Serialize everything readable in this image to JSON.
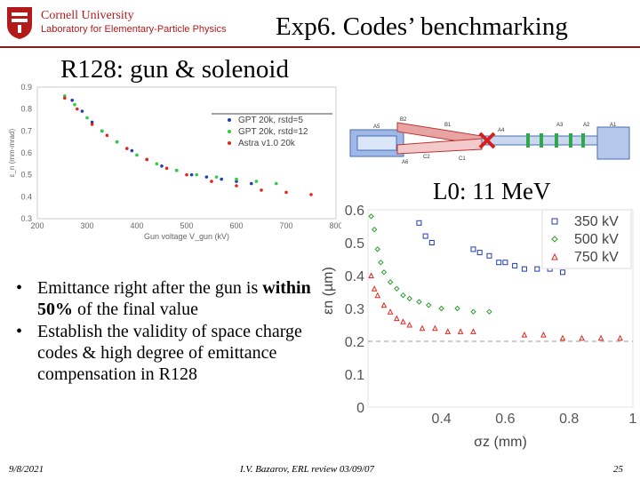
{
  "header": {
    "institution": "Cornell University",
    "lab": "Laboratory for Elementary-Particle Physics",
    "title": "Exp6. Codes’ benchmarking",
    "subtitle": "R128: gun & solenoid",
    "energy_label": "L0: 11 MeV"
  },
  "colors": {
    "brand": "#b31b1b",
    "rule": "#7f1d1d"
  },
  "bullets": [
    {
      "text_before": "Emittance right after the gun is ",
      "bold": "within 50%",
      "text_after": " of the final value"
    },
    {
      "text_before": "Establish the validity of space charge codes & high degree of emittance compensation in R128",
      "bold": "",
      "text_after": ""
    }
  ],
  "footer": {
    "date": "9/8/2021",
    "reference": "I.V. Bazarov, ERL review 03/09/07",
    "page": "25"
  },
  "beamline_labels": [
    "A1",
    "A2",
    "A3",
    "A4",
    "A5",
    "A6",
    "B1",
    "B2",
    "C1",
    "C2"
  ],
  "chart_data": [
    {
      "type": "scatter",
      "title": "",
      "xlabel": "Gun voltage V_gun (kV)",
      "ylabel": "ε_n (mm-mrad)",
      "xlim": [
        200,
        800
      ],
      "ylim": [
        0.3,
        0.9
      ],
      "x_ticks": [
        "200",
        "300",
        "400",
        "500",
        "600",
        "700",
        "800"
      ],
      "y_ticks": [
        "0.3",
        "0.4",
        "0.5",
        "0.6",
        "0.7",
        "0.8",
        "0.9"
      ],
      "legend_position": "top-right",
      "series": [
        {
          "name": "GPT 20k, rstd=5",
          "color": "#1f3fae",
          "marker": "dot",
          "x": [
            270,
            290,
            310,
            330,
            360,
            390,
            420,
            450,
            480,
            510,
            540,
            570,
            600,
            630
          ],
          "y": [
            0.84,
            0.79,
            0.74,
            0.7,
            0.65,
            0.61,
            0.57,
            0.54,
            0.52,
            0.5,
            0.49,
            0.48,
            0.47,
            0.46
          ]
        },
        {
          "name": "GPT 20k, rstd=12",
          "color": "#2ecc40",
          "marker": "dot",
          "x": [
            255,
            275,
            300,
            330,
            360,
            400,
            440,
            480,
            520,
            560,
            600,
            640,
            680
          ],
          "y": [
            0.86,
            0.82,
            0.76,
            0.7,
            0.65,
            0.59,
            0.55,
            0.52,
            0.5,
            0.49,
            0.48,
            0.47,
            0.46
          ]
        },
        {
          "name": "Astra v1.0 20k",
          "color": "#e3271d",
          "marker": "dot",
          "x": [
            255,
            280,
            310,
            340,
            380,
            420,
            460,
            500,
            550,
            600,
            650,
            700,
            750
          ],
          "y": [
            0.85,
            0.8,
            0.73,
            0.68,
            0.62,
            0.57,
            0.53,
            0.5,
            0.47,
            0.45,
            0.43,
            0.42,
            0.41
          ]
        }
      ]
    },
    {
      "type": "scatter",
      "title": "",
      "xlabel": "σz (mm)",
      "ylabel": "εn (µm)",
      "xlim": [
        0.17,
        1.0
      ],
      "ylim": [
        0,
        0.6
      ],
      "x_ticks": [
        {
          "v": 0.4,
          "label": "0.4"
        },
        {
          "v": 0.6,
          "label": "0.6"
        },
        {
          "v": 0.8,
          "label": "0.8"
        },
        {
          "v": 1.0,
          "label": "1"
        }
      ],
      "y_ticks": [
        "0",
        "0.1",
        "0.2",
        "0.3",
        "0.4",
        "0.5",
        "0.6"
      ],
      "legend_position": "top-right",
      "reference_line": 0.2,
      "series": [
        {
          "name": "350 kV",
          "color": "#1f3fae",
          "marker": "square",
          "x": [
            0.33,
            0.35,
            0.37,
            0.5,
            0.52,
            0.55,
            0.58,
            0.6,
            0.63,
            0.66,
            0.7,
            0.74,
            0.78
          ],
          "y": [
            0.56,
            0.52,
            0.5,
            0.48,
            0.47,
            0.46,
            0.44,
            0.44,
            0.43,
            0.42,
            0.42,
            0.42,
            0.41
          ]
        },
        {
          "name": "500 kV",
          "color": "#2a9d2a",
          "marker": "diamond",
          "x": [
            0.18,
            0.19,
            0.2,
            0.21,
            0.22,
            0.24,
            0.26,
            0.28,
            0.3,
            0.33,
            0.36,
            0.4,
            0.45,
            0.5,
            0.55
          ],
          "y": [
            0.58,
            0.54,
            0.48,
            0.44,
            0.41,
            0.38,
            0.36,
            0.34,
            0.33,
            0.32,
            0.31,
            0.3,
            0.3,
            0.29,
            0.29
          ]
        },
        {
          "name": "750 kV",
          "color": "#e3271d",
          "marker": "triangle",
          "x": [
            0.18,
            0.19,
            0.2,
            0.22,
            0.24,
            0.26,
            0.28,
            0.3,
            0.34,
            0.38,
            0.42,
            0.46,
            0.5,
            0.66,
            0.72,
            0.78,
            0.84,
            0.9,
            0.96
          ],
          "y": [
            0.4,
            0.36,
            0.34,
            0.31,
            0.29,
            0.27,
            0.26,
            0.25,
            0.24,
            0.24,
            0.23,
            0.23,
            0.23,
            0.22,
            0.22,
            0.21,
            0.21,
            0.21,
            0.21
          ]
        }
      ]
    }
  ]
}
